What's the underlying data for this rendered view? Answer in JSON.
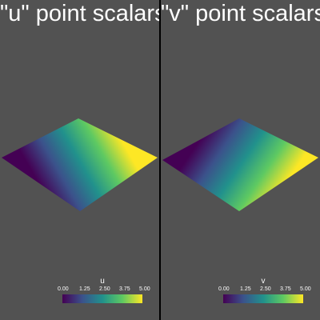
{
  "viewports": [
    {
      "title": "\"u\" point scalars",
      "scalar": "u",
      "gradient": "left-to-right",
      "scalar_bar": {
        "title": "u",
        "ticks": [
          "0.00",
          "1.25",
          "2.50",
          "3.75",
          "5.00"
        ]
      }
    },
    {
      "title": "\"v\" point scalars",
      "scalar": "v",
      "gradient": "top-to-bottom",
      "scalar_bar": {
        "title": "v",
        "ticks": [
          "0.00",
          "1.25",
          "2.50",
          "3.75",
          "5.00"
        ]
      }
    }
  ],
  "colormap": {
    "name": "viridis",
    "stops": [
      "#440154",
      "#3b528b",
      "#21918c",
      "#5ec962",
      "#fde725"
    ]
  },
  "colors": {
    "background": "#525252",
    "divider": "#000000",
    "text": "#ffffff"
  }
}
